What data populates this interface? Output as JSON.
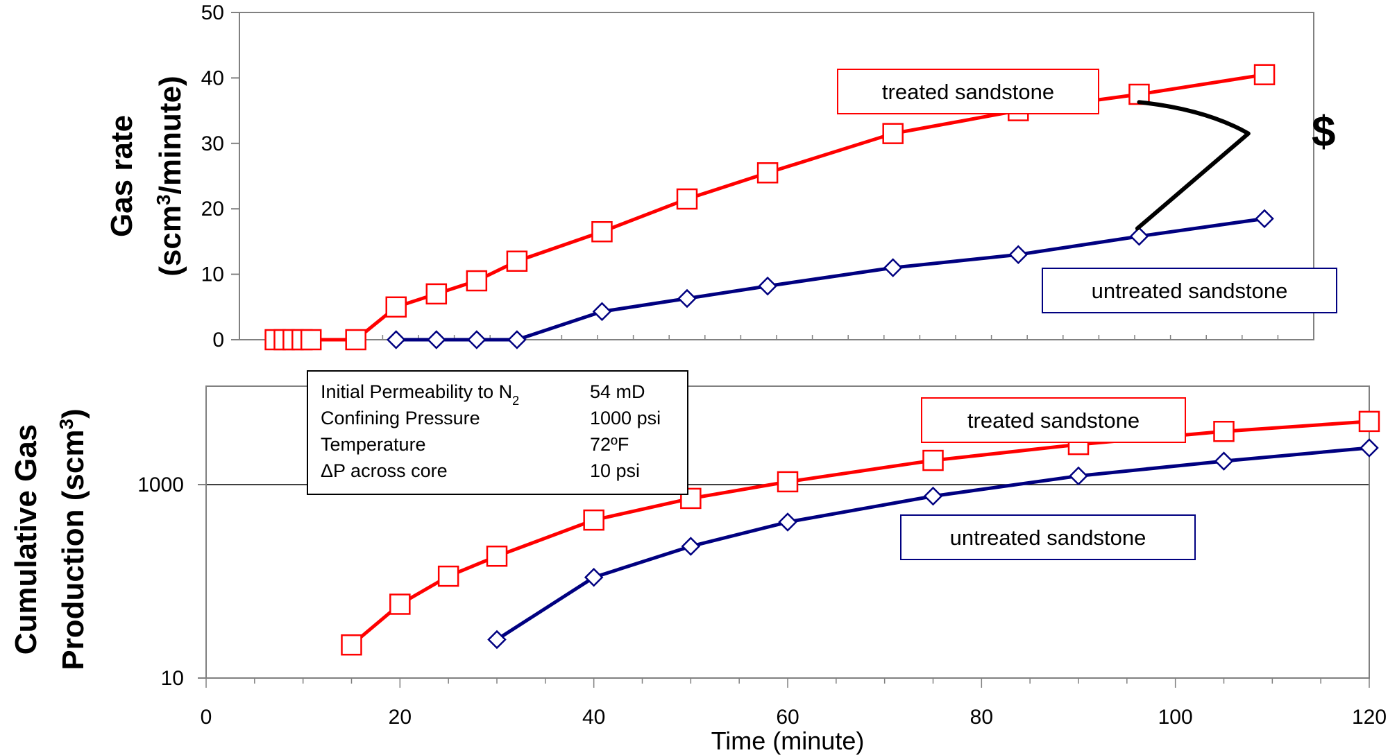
{
  "chart_data": [
    {
      "type": "line",
      "ylabel_line1": "Gas rate",
      "ylabel_line2_pre": "(scm",
      "ylabel_line2_sup": "3",
      "ylabel_line2_post": "/minute)",
      "ylim": [
        0,
        50
      ],
      "yticks": [
        "0",
        "10",
        "20",
        "30",
        "40",
        "50"
      ],
      "grid": false,
      "series": [
        {
          "name": "treated sandstone",
          "color": "#ff0000",
          "marker": "square",
          "x": [
            4,
            5,
            6,
            7,
            8,
            13,
            17.5,
            22,
            26.5,
            31,
            40.5,
            50,
            59,
            73,
            87,
            100.5,
            114.5
          ],
          "y": [
            0,
            0,
            0,
            0,
            0,
            0,
            5,
            7,
            9,
            12,
            16.5,
            21.5,
            25.5,
            31.5,
            35,
            37.5,
            40.5
          ]
        },
        {
          "name": "untreated sandstone",
          "color": "#000080",
          "marker": "diamond",
          "x": [
            17.5,
            22,
            26.5,
            31,
            40.5,
            50,
            59,
            73,
            87,
            100.5,
            114.5
          ],
          "y": [
            0,
            0,
            0,
            0,
            4.3,
            6.3,
            8.2,
            11,
            13,
            15.8,
            18.5
          ]
        }
      ],
      "annotation": "$"
    },
    {
      "type": "line",
      "ylabel_line1": "Cumulative Gas",
      "ylabel_line2_pre": "Production (scm",
      "ylabel_line2_sup": "3",
      "ylabel_line2_post": ")",
      "xlabel": "Time (minute)",
      "xlim": [
        0,
        120
      ],
      "xticks": [
        "0",
        "20",
        "40",
        "60",
        "80",
        "100",
        "120"
      ],
      "yscale": "log",
      "ylim": [
        10,
        10000
      ],
      "yticks": [
        "10",
        "1000"
      ],
      "grid": "horizontal at 1000",
      "series": [
        {
          "name": "treated sandstone",
          "color": "#ff0000",
          "marker": "square",
          "x": [
            15,
            20,
            25,
            30,
            40,
            50,
            60,
            75,
            90,
            105,
            120
          ],
          "y": [
            22,
            58,
            113,
            182,
            430,
            720,
            1070,
            1780,
            2600,
            3550,
            4500
          ]
        },
        {
          "name": "untreated sandstone",
          "color": "#000080",
          "marker": "diamond",
          "x": [
            30,
            40,
            50,
            60,
            75,
            90,
            105,
            120
          ],
          "y": [
            25,
            110,
            230,
            410,
            760,
            1230,
            1750,
            2400
          ]
        }
      ]
    }
  ],
  "info_box": [
    {
      "label_pre": "Initial Permeability to N",
      "label_sub": "2",
      "value": "54 mD"
    },
    {
      "label_pre": "Confining Pressure",
      "label_sub": "",
      "value": "1000 psi"
    },
    {
      "label_pre": "Temperature",
      "label_sub": "",
      "value": "72ºF"
    },
    {
      "label_pre": "ΔP across core",
      "label_sub": "",
      "value": "10 psi"
    }
  ]
}
